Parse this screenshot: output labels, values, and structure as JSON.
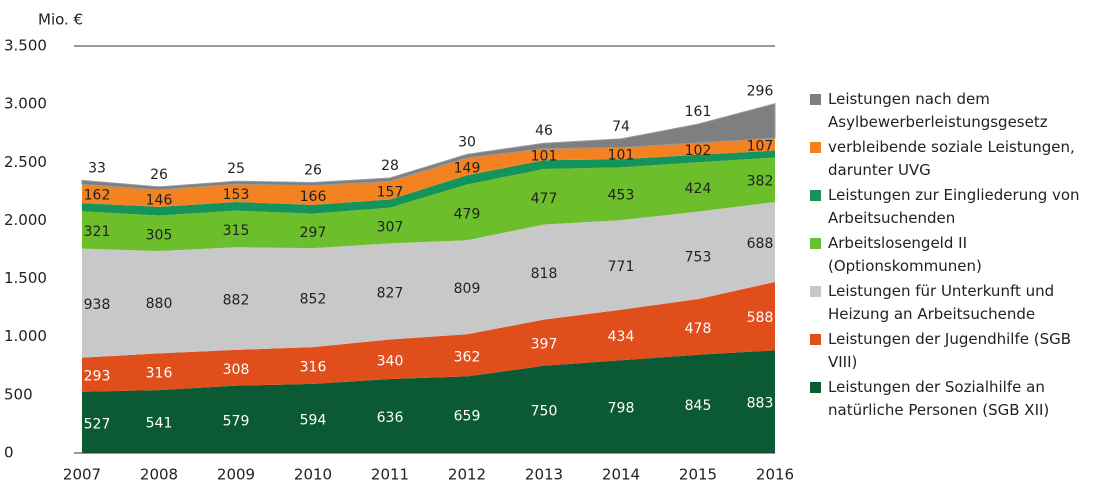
{
  "chart_data": {
    "type": "stacked_area",
    "y_label": "Mio. €",
    "categories": [
      "2007",
      "2008",
      "2009",
      "2010",
      "2011",
      "2012",
      "2013",
      "2014",
      "2015",
      "2016"
    ],
    "ylim": [
      0,
      3500
    ],
    "yticks": [
      0,
      {
        "value": 500,
        "label": "500"
      },
      {
        "value": 1000,
        "label": "1.000"
      },
      {
        "value": 1500,
        "label": "1.500"
      },
      {
        "value": 2000,
        "label": "2.000"
      },
      {
        "value": 2500,
        "label": "2.500"
      },
      {
        "value": 3000,
        "label": "3.000"
      },
      {
        "value": 3500,
        "label": "3.500"
      }
    ],
    "series": [
      {
        "name": "Leistungen der Sozialhilfe an natürliche Personen (SGB XII)",
        "color": "#0b5a33",
        "values": [
          527,
          541,
          579,
          594,
          636,
          659,
          750,
          798,
          845,
          883
        ]
      },
      {
        "name": "Leistungen der Jugendhilfe (SGB VIII)",
        "color": "#e04e1b",
        "values": [
          293,
          316,
          308,
          316,
          340,
          362,
          397,
          434,
          478,
          588
        ]
      },
      {
        "name": "Leistungen für Unterkunft und Heizung an Arbeitsuchende",
        "color": "#c8c8c8",
        "values": [
          938,
          880,
          882,
          852,
          827,
          809,
          818,
          771,
          753,
          688
        ]
      },
      {
        "name": "Arbeitslosengeld II (Optionskommunen)",
        "color": "#6cbf2b",
        "values": [
          321,
          305,
          315,
          297,
          307,
          479,
          477,
          453,
          424,
          382
        ]
      },
      {
        "name": "Leistungen zur Eingliederung von Arbeitsuchenden",
        "color": "#14935a",
        "values": [
          70,
          75,
          75,
          75,
          70,
          80,
          75,
          70,
          65,
          60
        ],
        "data_labels": false
      },
      {
        "name": "verbleibende soziale Leistungen, darunter UVG",
        "color": "#f58220",
        "values": [
          162,
          146,
          153,
          166,
          157,
          149,
          101,
          101,
          102,
          107
        ]
      },
      {
        "name": "Leistungen nach dem Asylbewerberleistungsgesetz",
        "color": "#7f7f7f",
        "values": [
          33,
          26,
          25,
          26,
          28,
          30,
          46,
          74,
          161,
          296
        ]
      }
    ]
  }
}
